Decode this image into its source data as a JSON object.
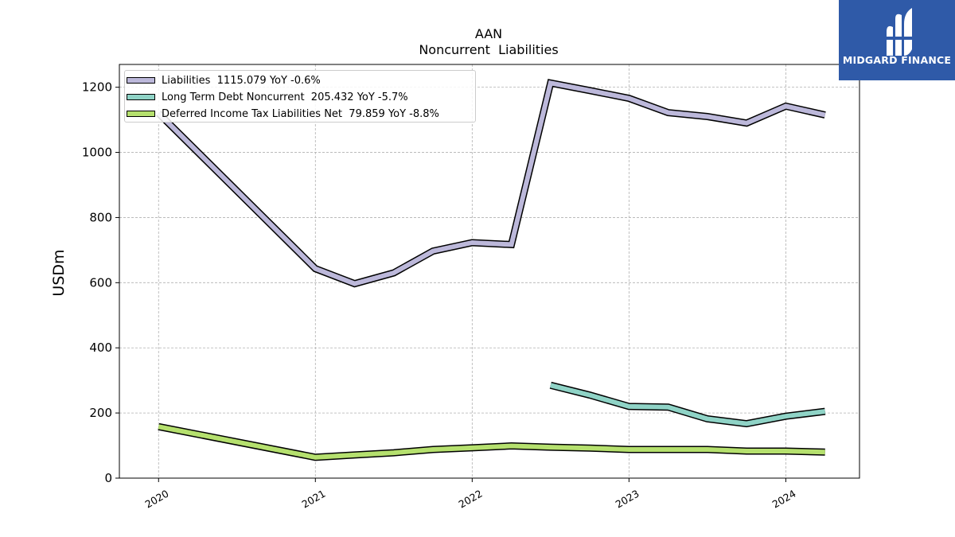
{
  "chart_data": {
    "type": "line",
    "title": "AAN",
    "subtitle": "Noncurrent  Liabilities",
    "ylabel": "USDm",
    "xlabel": "",
    "ylim": [
      0,
      1270
    ],
    "xlim": [
      2019.75,
      2024.47
    ],
    "yticks": [
      0,
      200,
      400,
      600,
      800,
      1000,
      1200
    ],
    "xticks": [
      2020,
      2021,
      2022,
      2023,
      2024
    ],
    "xtick_labels": [
      "2020",
      "2021",
      "2022",
      "2023",
      "2024"
    ],
    "grid": true,
    "legend_position": "top-left",
    "series": [
      {
        "name": "Liabilities  1115.079 YoY -0.6%",
        "color": "#bcb8da",
        "x": [
          2020.0,
          2021.0,
          2021.25,
          2021.5,
          2021.75,
          2022.0,
          2022.25,
          2022.5,
          2022.75,
          2023.0,
          2023.25,
          2023.5,
          2023.75,
          2024.0,
          2024.25
        ],
        "y": [
          1120,
          643,
          597,
          630,
          697,
          723,
          717,
          1213,
          1190,
          1166,
          1122,
          1110,
          1090,
          1142,
          1115
        ]
      },
      {
        "name": "Long Term Debt Noncurrent  205.432 YoY -5.7%",
        "color": "#8fd3c6",
        "x": [
          2022.5,
          2022.75,
          2023.0,
          2023.25,
          2023.5,
          2023.75,
          2024.0,
          2024.25
        ],
        "y": [
          285,
          255,
          220,
          218,
          182,
          167,
          190,
          205
        ]
      },
      {
        "name": "Deferred Income Tax Liabilities Net  79.859 YoY -8.8%",
        "color": "#b5e06e",
        "x": [
          2020.0,
          2021.0,
          2021.25,
          2021.5,
          2021.75,
          2022.0,
          2022.25,
          2022.5,
          2022.75,
          2023.0,
          2023.25,
          2023.5,
          2023.75,
          2024.0,
          2024.25
        ],
        "y": [
          158,
          64,
          71,
          78,
          88,
          93,
          99,
          95,
          92,
          88,
          88,
          88,
          83,
          83,
          80
        ]
      }
    ]
  },
  "logo": {
    "text": "MIDGARD FINANCE",
    "color": "#2f5aa8"
  }
}
